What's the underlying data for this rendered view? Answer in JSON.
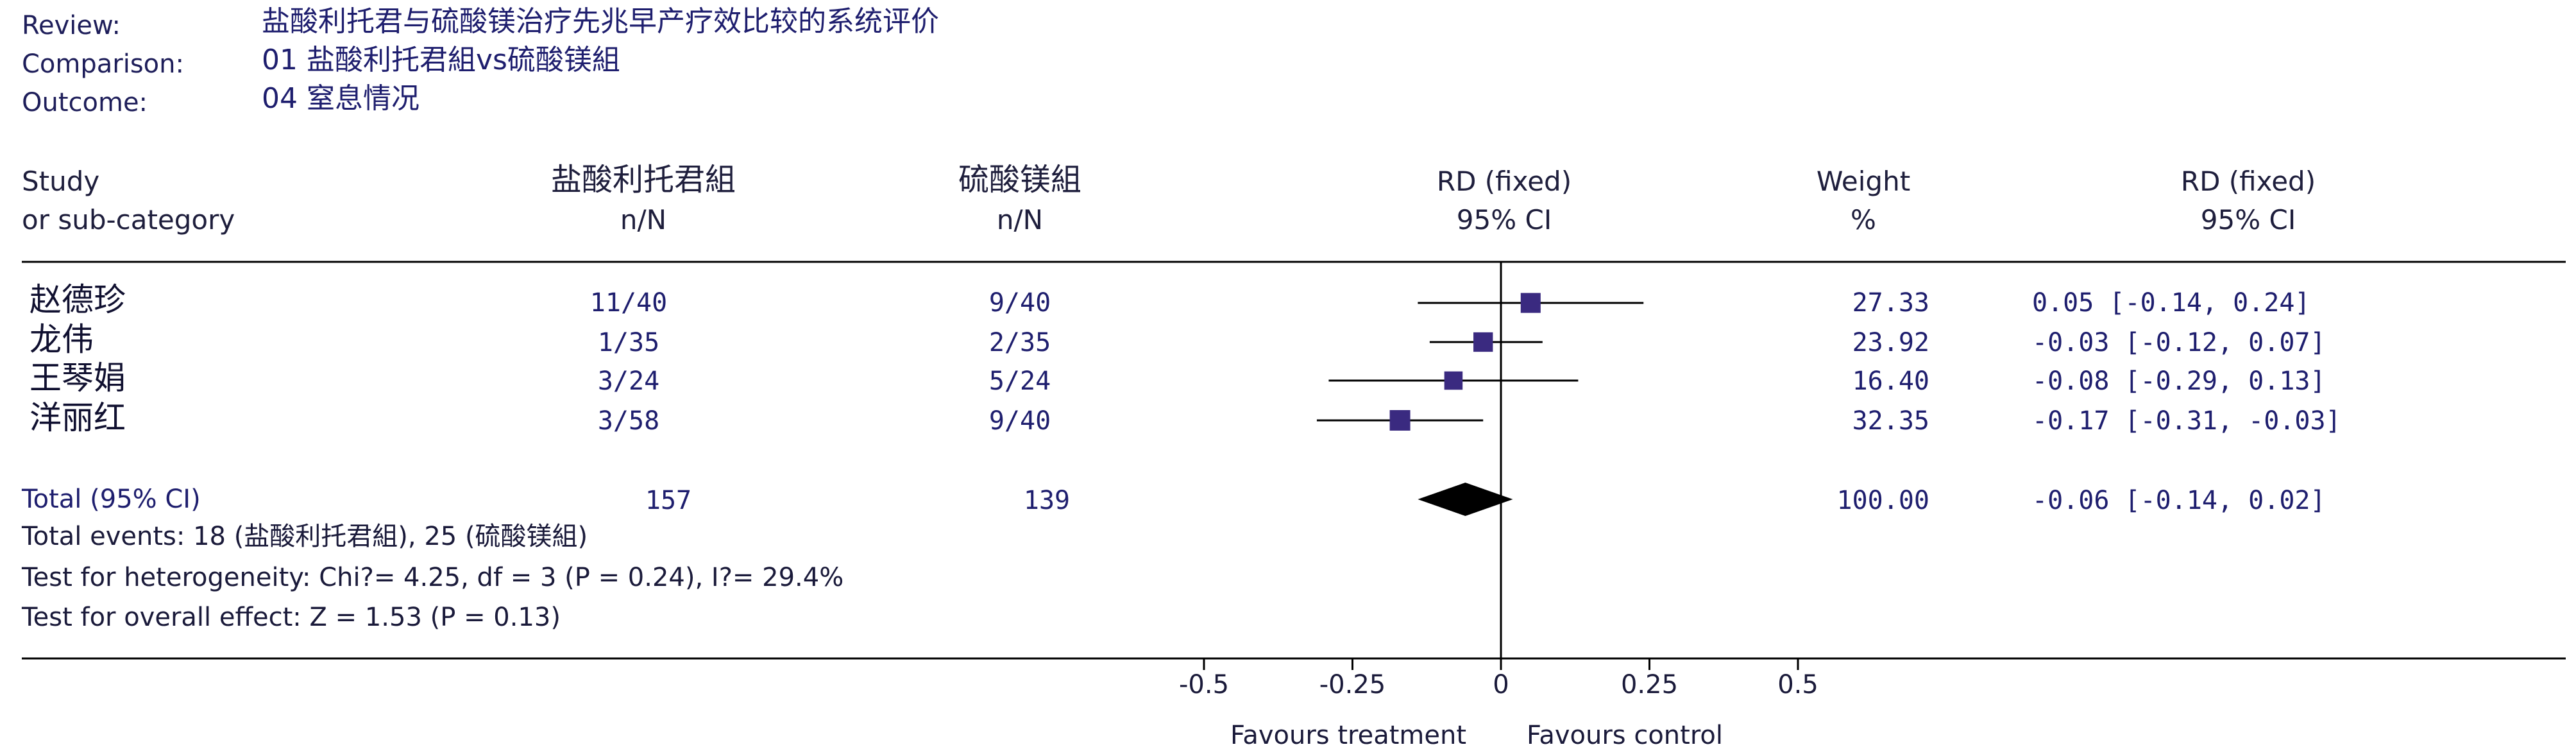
{
  "header": {
    "review_label": "Review:",
    "review_value": "盐酸利托君与硫酸镁治疗先兆早产疗效比较的系统评价",
    "comparison_label": "Comparison:",
    "comparison_value": "01 盐酸利托君組vs硫酸镁組",
    "outcome_label": "Outcome:",
    "outcome_value": "04 窒息情况"
  },
  "columns": {
    "study_1": "Study",
    "study_2": "or sub-category",
    "treatment_1": "盐酸利托君組",
    "treatment_2": "n/N",
    "control_1": "硫酸镁組",
    "control_2": "n/N",
    "plot_1": "RD (fixed)",
    "plot_2": "95% CI",
    "weight_1": "Weight",
    "weight_2": "%",
    "ci_1": "RD (fixed)",
    "ci_2": "95% CI"
  },
  "rows": [
    {
      "study": "赵德珍",
      "treatment": "11/40",
      "control": "9/40",
      "weight": "27.33",
      "ci_text": "0.05 [-0.14, 0.24]"
    },
    {
      "study": "龙伟",
      "treatment": "1/35",
      "control": "2/35",
      "weight": "23.92",
      "ci_text": "-0.03 [-0.12, 0.07]"
    },
    {
      "study": "王琴娟",
      "treatment": "3/24",
      "control": "5/24",
      "weight": "16.40",
      "ci_text": "-0.08 [-0.29, 0.13]"
    },
    {
      "study": "洋丽红",
      "treatment": "3/58",
      "control": "9/40",
      "weight": "32.35",
      "ci_text": "-0.17 [-0.31, -0.03]"
    }
  ],
  "total": {
    "label": "Total (95% CI)",
    "treatment": "157",
    "control": "139",
    "weight": "100.00",
    "ci_text": "-0.06 [-0.14, 0.02]"
  },
  "footer": {
    "events": "Total events: 18 (盐酸利托君組), 25 (硫酸镁組)",
    "heterogeneity": "Test for heterogeneity: Chi?= 4.25, df = 3 (P = 0.24), I?= 29.4%",
    "overall": "Test for overall effect: Z = 1.53 (P = 0.13)"
  },
  "axis": {
    "favours_left": "Favours treatment",
    "favours_right": "Favours control"
  },
  "colors": {
    "marker": "#3a2a80",
    "diamond": "#000000",
    "line": "#000000",
    "text": "#1e1e6e"
  },
  "chart_data": {
    "type": "forest",
    "measure": "RD (fixed)",
    "xlim": [
      -0.5,
      0.5
    ],
    "xticks": [
      -0.5,
      -0.25,
      0,
      0.25,
      0.5
    ],
    "xtick_labels": [
      "-0.5",
      "-0.25",
      "0",
      "0.25",
      "0.5"
    ],
    "studies": [
      {
        "name": "赵德珍",
        "rd": 0.05,
        "lower": -0.14,
        "upper": 0.24,
        "weight": 27.33
      },
      {
        "name": "龙伟",
        "rd": -0.03,
        "lower": -0.12,
        "upper": 0.07,
        "weight": 23.92
      },
      {
        "name": "王琴娟",
        "rd": -0.08,
        "lower": -0.29,
        "upper": 0.13,
        "weight": 16.4
      },
      {
        "name": "洋丽红",
        "rd": -0.17,
        "lower": -0.31,
        "upper": -0.03,
        "weight": 32.35
      }
    ],
    "pooled": {
      "rd": -0.06,
      "lower": -0.14,
      "upper": 0.02
    }
  }
}
